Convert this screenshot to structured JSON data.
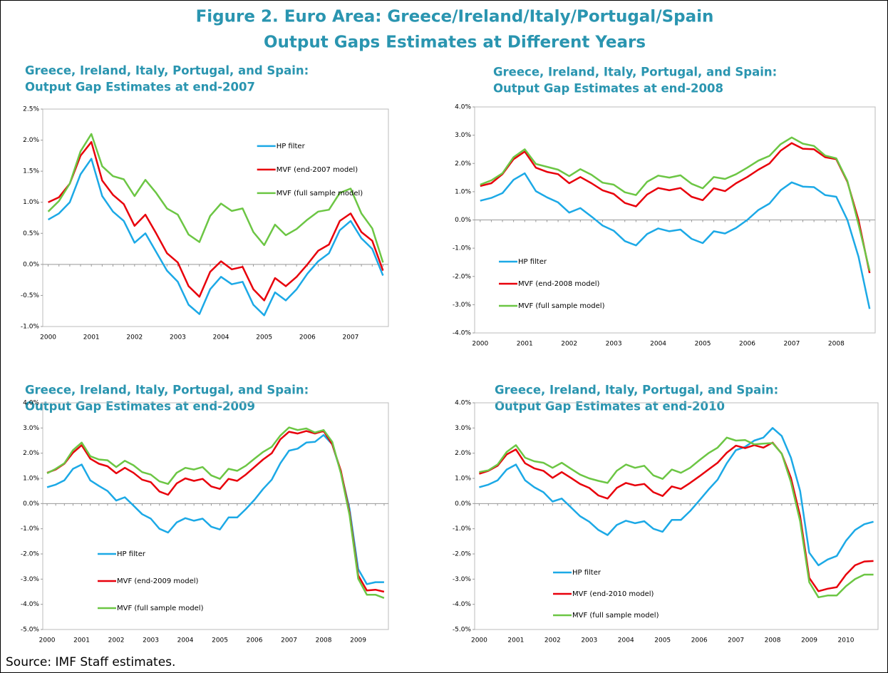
{
  "header": {
    "title": [
      "Figure 2. Euro Area: Greece/Ireland/Italy/Portugal/Spain",
      "Output Gaps Estimates at Different Years"
    ]
  },
  "source": "Source: IMF Staff estimates.",
  "chart_data": [
    {
      "type": "line",
      "title": [
        "Greece, Ireland, Italy, Portugal, and Spain:",
        "Output Gap Estimates at end-2007"
      ],
      "categories": [
        "2000",
        null,
        null,
        null,
        "2001",
        null,
        null,
        null,
        "2002",
        null,
        null,
        null,
        "2003",
        null,
        null,
        null,
        "2004",
        null,
        null,
        null,
        "2005",
        null,
        null,
        null,
        "2006",
        null,
        null,
        null,
        "2007",
        null,
        null,
        null
      ],
      "series": [
        {
          "name": "HP filter",
          "color": "#1ca9e6",
          "values": [
            0.72,
            0.82,
            1.0,
            1.45,
            1.7,
            1.1,
            0.85,
            0.7,
            0.35,
            0.5,
            0.2,
            -0.1,
            -0.28,
            -0.65,
            -0.8,
            -0.4,
            -0.2,
            -0.32,
            -0.28,
            -0.65,
            -0.82,
            -0.45,
            -0.58,
            -0.4,
            -0.15,
            0.05,
            0.18,
            0.55,
            0.7,
            0.42,
            0.25,
            -0.18
          ]
        },
        {
          "name": "MVF (end-2007 model)",
          "color": "#e8000b",
          "values": [
            1.0,
            1.08,
            1.3,
            1.75,
            1.97,
            1.35,
            1.12,
            0.97,
            0.62,
            0.8,
            0.5,
            0.18,
            0.03,
            -0.35,
            -0.52,
            -0.12,
            0.05,
            -0.08,
            -0.04,
            -0.4,
            -0.58,
            -0.22,
            -0.35,
            -0.2,
            0.0,
            0.22,
            0.32,
            0.7,
            0.82,
            0.52,
            0.38,
            -0.1
          ]
        },
        {
          "name": "MVF (full sample model)",
          "color": "#6cc644",
          "values": [
            0.85,
            1.02,
            1.3,
            1.82,
            2.1,
            1.58,
            1.42,
            1.37,
            1.1,
            1.36,
            1.15,
            0.9,
            0.8,
            0.48,
            0.36,
            0.78,
            0.98,
            0.86,
            0.9,
            0.52,
            0.31,
            0.64,
            0.47,
            0.57,
            0.72,
            0.85,
            0.88,
            1.15,
            1.22,
            0.82,
            0.58,
            0.03
          ]
        }
      ],
      "ylim": [
        -1,
        2.5
      ],
      "yticks": [
        {
          "value": -1,
          "label": "-1.0%"
        },
        {
          "value": -0.5,
          "label": "-0.5%"
        },
        {
          "value": 0,
          "label": "0.0%"
        },
        {
          "value": 0.5,
          "label": "0.5%"
        },
        {
          "value": 1,
          "label": "1.0%"
        },
        {
          "value": 1.5,
          "label": "1.5%"
        },
        {
          "value": 2,
          "label": "2.0%"
        },
        {
          "value": 2.5,
          "label": "2.5%"
        }
      ],
      "legend": "upper center"
    },
    {
      "type": "line",
      "title": [
        "Greece, Ireland, Italy, Portugal, and Spain:",
        "Output Gap Estimates at end-2008"
      ],
      "categories": [
        "2000",
        null,
        null,
        null,
        "2001",
        null,
        null,
        null,
        "2002",
        null,
        null,
        null,
        "2003",
        null,
        null,
        null,
        "2004",
        null,
        null,
        null,
        "2005",
        null,
        null,
        null,
        "2006",
        null,
        null,
        null,
        "2007",
        null,
        null,
        null,
        "2008",
        null,
        null,
        null
      ],
      "series": [
        {
          "name": "HP filter",
          "color": "#1ca9e6",
          "values": [
            0.68,
            0.78,
            0.95,
            1.42,
            1.65,
            1.02,
            0.8,
            0.62,
            0.26,
            0.42,
            0.12,
            -0.2,
            -0.38,
            -0.75,
            -0.9,
            -0.5,
            -0.3,
            -0.4,
            -0.34,
            -0.67,
            -0.82,
            -0.4,
            -0.48,
            -0.28,
            0.0,
            0.35,
            0.58,
            1.05,
            1.33,
            1.18,
            1.16,
            0.88,
            0.82,
            0.0,
            -1.3,
            -3.15
          ]
        },
        {
          "name": "MVF (end-2008 model)",
          "color": "#e8000b",
          "values": [
            1.2,
            1.3,
            1.62,
            2.15,
            2.42,
            1.85,
            1.7,
            1.62,
            1.3,
            1.52,
            1.3,
            1.05,
            0.92,
            0.6,
            0.48,
            0.9,
            1.13,
            1.05,
            1.13,
            0.82,
            0.7,
            1.12,
            1.02,
            1.3,
            1.52,
            1.78,
            2.0,
            2.45,
            2.72,
            2.52,
            2.5,
            2.22,
            2.15,
            1.35,
            0.0,
            -1.88
          ]
        },
        {
          "name": "MVF (full sample model)",
          "color": "#6cc644",
          "values": [
            1.25,
            1.4,
            1.65,
            2.22,
            2.5,
            1.98,
            1.88,
            1.78,
            1.55,
            1.8,
            1.6,
            1.32,
            1.25,
            0.98,
            0.88,
            1.35,
            1.57,
            1.5,
            1.58,
            1.28,
            1.12,
            1.52,
            1.45,
            1.62,
            1.85,
            2.1,
            2.27,
            2.68,
            2.92,
            2.7,
            2.62,
            2.28,
            2.18,
            1.38,
            -0.15,
            -1.8
          ]
        }
      ],
      "ylim": [
        -4,
        4
      ],
      "yticks": [
        {
          "value": -4,
          "label": "-4.0%"
        },
        {
          "value": -3,
          "label": "-3.0%"
        },
        {
          "value": -2,
          "label": "-2.0%"
        },
        {
          "value": -1,
          "label": "-1.0%"
        },
        {
          "value": 0,
          "label": "0.0%"
        },
        {
          "value": 1,
          "label": "1.0%"
        },
        {
          "value": 2,
          "label": "2.0%"
        },
        {
          "value": 3,
          "label": "3.0%"
        },
        {
          "value": 4,
          "label": "4.0%"
        }
      ],
      "legend": "lower left"
    },
    {
      "type": "line",
      "title": [
        "Greece, Ireland, Italy, Portugal, and Spain:",
        "Output Gap Estimates at end-2009"
      ],
      "categories": [
        "2000",
        null,
        null,
        null,
        "2001",
        null,
        null,
        null,
        "2002",
        null,
        null,
        null,
        "2003",
        null,
        null,
        null,
        "2004",
        null,
        null,
        null,
        "2005",
        null,
        null,
        null,
        "2006",
        null,
        null,
        null,
        "2007",
        null,
        null,
        null,
        "2008",
        null,
        null,
        null,
        "2009",
        null,
        null,
        null
      ],
      "series": [
        {
          "name": "HP filter",
          "color": "#1ca9e6",
          "values": [
            0.65,
            0.75,
            0.92,
            1.38,
            1.55,
            0.92,
            0.7,
            0.5,
            0.12,
            0.25,
            -0.08,
            -0.42,
            -0.6,
            -1.0,
            -1.15,
            -0.75,
            -0.58,
            -0.68,
            -0.6,
            -0.92,
            -1.03,
            -0.55,
            -0.55,
            -0.22,
            0.15,
            0.58,
            0.95,
            1.6,
            2.1,
            2.18,
            2.42,
            2.45,
            2.72,
            2.35,
            1.25,
            -0.2,
            -2.6,
            -3.2,
            -3.12,
            -3.12
          ]
        },
        {
          "name": "MVF (end-2009 model)",
          "color": "#e8000b",
          "values": [
            1.22,
            1.35,
            1.58,
            2.02,
            2.32,
            1.78,
            1.58,
            1.48,
            1.2,
            1.42,
            1.22,
            0.95,
            0.85,
            0.48,
            0.35,
            0.8,
            1.0,
            0.9,
            0.98,
            0.68,
            0.58,
            0.98,
            0.9,
            1.15,
            1.45,
            1.75,
            2.0,
            2.55,
            2.85,
            2.78,
            2.88,
            2.78,
            2.88,
            2.35,
            1.3,
            -0.35,
            -2.85,
            -3.45,
            -3.42,
            -3.5
          ]
        },
        {
          "name": "MVF (full sample model)",
          "color": "#6cc644",
          "values": [
            1.2,
            1.38,
            1.6,
            2.12,
            2.42,
            1.88,
            1.75,
            1.72,
            1.45,
            1.7,
            1.52,
            1.25,
            1.15,
            0.88,
            0.78,
            1.22,
            1.42,
            1.35,
            1.45,
            1.12,
            0.98,
            1.38,
            1.3,
            1.5,
            1.78,
            2.05,
            2.25,
            2.7,
            3.02,
            2.92,
            2.98,
            2.82,
            2.92,
            2.45,
            1.2,
            -0.45,
            -2.98,
            -3.62,
            -3.62,
            -3.75
          ]
        }
      ],
      "ylim": [
        -5,
        4
      ],
      "yticks": [
        {
          "value": -5,
          "label": "-5.0%"
        },
        {
          "value": -4,
          "label": "-4.0%"
        },
        {
          "value": -3,
          "label": "-3.0%"
        },
        {
          "value": -2,
          "label": "-2.0%"
        },
        {
          "value": -1,
          "label": "-1.0%"
        },
        {
          "value": 0,
          "label": "0.0%"
        },
        {
          "value": 1,
          "label": "1.0%"
        },
        {
          "value": 2,
          "label": "2.0%"
        },
        {
          "value": 3,
          "label": "3.0%"
        },
        {
          "value": 4,
          "label": "4.0%"
        }
      ],
      "legend": "lower left"
    },
    {
      "type": "line",
      "title": [
        "Greece, Ireland, Italy, Portugal, and Spain:",
        "Output Gap Estimates at end-2010"
      ],
      "categories": [
        "2000",
        null,
        null,
        null,
        "2001",
        null,
        null,
        null,
        "2002",
        null,
        null,
        null,
        "2003",
        null,
        null,
        null,
        "2004",
        null,
        null,
        null,
        "2005",
        null,
        null,
        null,
        "2006",
        null,
        null,
        null,
        "2007",
        null,
        null,
        null,
        "2008",
        null,
        null,
        null,
        "2009",
        null,
        null,
        null,
        "2010",
        null,
        null,
        null
      ],
      "series": [
        {
          "name": "HP filter",
          "color": "#1ca9e6",
          "values": [
            0.65,
            0.75,
            0.92,
            1.35,
            1.55,
            0.92,
            0.65,
            0.45,
            0.08,
            0.2,
            -0.15,
            -0.5,
            -0.72,
            -1.05,
            -1.25,
            -0.85,
            -0.68,
            -0.78,
            -0.7,
            -1.0,
            -1.12,
            -0.65,
            -0.65,
            -0.3,
            0.12,
            0.55,
            0.95,
            1.6,
            2.12,
            2.25,
            2.5,
            2.62,
            3.0,
            2.68,
            1.82,
            0.5,
            -1.95,
            -2.45,
            -2.22,
            -2.08,
            -1.48,
            -1.05,
            -0.82,
            -0.72
          ]
        },
        {
          "name": "MVF (end-2010 model)",
          "color": "#e8000b",
          "values": [
            1.18,
            1.3,
            1.5,
            1.95,
            2.15,
            1.6,
            1.4,
            1.3,
            1.02,
            1.25,
            1.02,
            0.78,
            0.62,
            0.32,
            0.2,
            0.62,
            0.82,
            0.72,
            0.78,
            0.45,
            0.3,
            0.68,
            0.58,
            0.82,
            1.08,
            1.35,
            1.62,
            2.02,
            2.3,
            2.2,
            2.32,
            2.22,
            2.42,
            1.98,
            1.02,
            -0.5,
            -2.95,
            -3.48,
            -3.38,
            -3.32,
            -2.82,
            -2.45,
            -2.3,
            -2.28
          ]
        },
        {
          "name": "MVF (full sample model)",
          "color": "#6cc644",
          "values": [
            1.25,
            1.32,
            1.55,
            2.05,
            2.32,
            1.82,
            1.68,
            1.62,
            1.42,
            1.62,
            1.38,
            1.15,
            1.0,
            0.9,
            0.82,
            1.3,
            1.55,
            1.42,
            1.5,
            1.12,
            0.98,
            1.35,
            1.22,
            1.42,
            1.72,
            2.0,
            2.22,
            2.62,
            2.5,
            2.52,
            2.35,
            2.38,
            2.4,
            1.98,
            0.85,
            -0.7,
            -3.12,
            -3.72,
            -3.65,
            -3.65,
            -3.28,
            -3.0,
            -2.82,
            -2.82
          ]
        }
      ],
      "ylim": [
        -5,
        4
      ],
      "yticks": [
        {
          "value": -5,
          "label": "-5.0%"
        },
        {
          "value": -4,
          "label": "-4.0%"
        },
        {
          "value": -3,
          "label": "-3.0%"
        },
        {
          "value": -2,
          "label": "-2.0%"
        },
        {
          "value": -1,
          "label": "-1.0%"
        },
        {
          "value": 0,
          "label": "0.0%"
        },
        {
          "value": 1,
          "label": "1.0%"
        },
        {
          "value": 2,
          "label": "2.0%"
        },
        {
          "value": 3,
          "label": "3.0%"
        },
        {
          "value": 4,
          "label": "4.0%"
        }
      ],
      "legend": "lower left"
    }
  ]
}
